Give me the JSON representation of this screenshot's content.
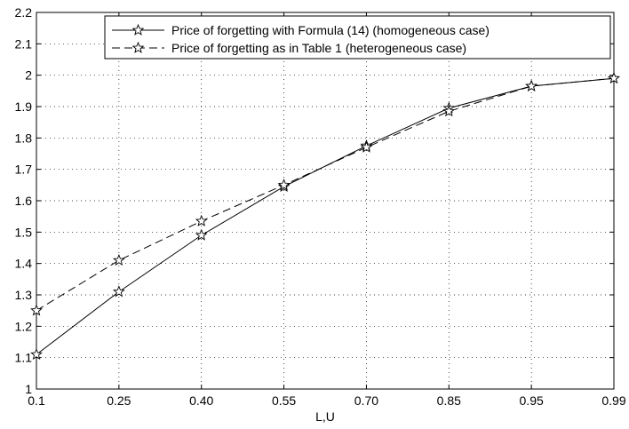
{
  "chart_data": {
    "type": "line",
    "title": "",
    "xlabel": "L,U",
    "ylabel": "",
    "x_categories": [
      "0.1",
      "0.25",
      "0.40",
      "0.55",
      "0.70",
      "0.85",
      "0.95",
      "0.99"
    ],
    "ylim": [
      1,
      2.2
    ],
    "yticks": [
      "1",
      "1.1",
      "1.2",
      "1.3",
      "1.4",
      "1.5",
      "1.6",
      "1.7",
      "1.8",
      "1.9",
      "2",
      "2.1",
      "2.2"
    ],
    "grid": true,
    "legend_position": "top-right",
    "marker": "star",
    "series": [
      {
        "name": "Price of forgetting with Formula (14) (homogeneous case)",
        "style": "solid",
        "values": [
          1.11,
          1.31,
          1.49,
          1.645,
          1.775,
          1.895,
          1.965,
          1.99
        ]
      },
      {
        "name": "Price of forgetting as in Table 1 (heterogeneous case)",
        "style": "dashed",
        "values": [
          1.25,
          1.41,
          1.535,
          1.65,
          1.77,
          1.885,
          1.965,
          1.99
        ]
      }
    ]
  }
}
